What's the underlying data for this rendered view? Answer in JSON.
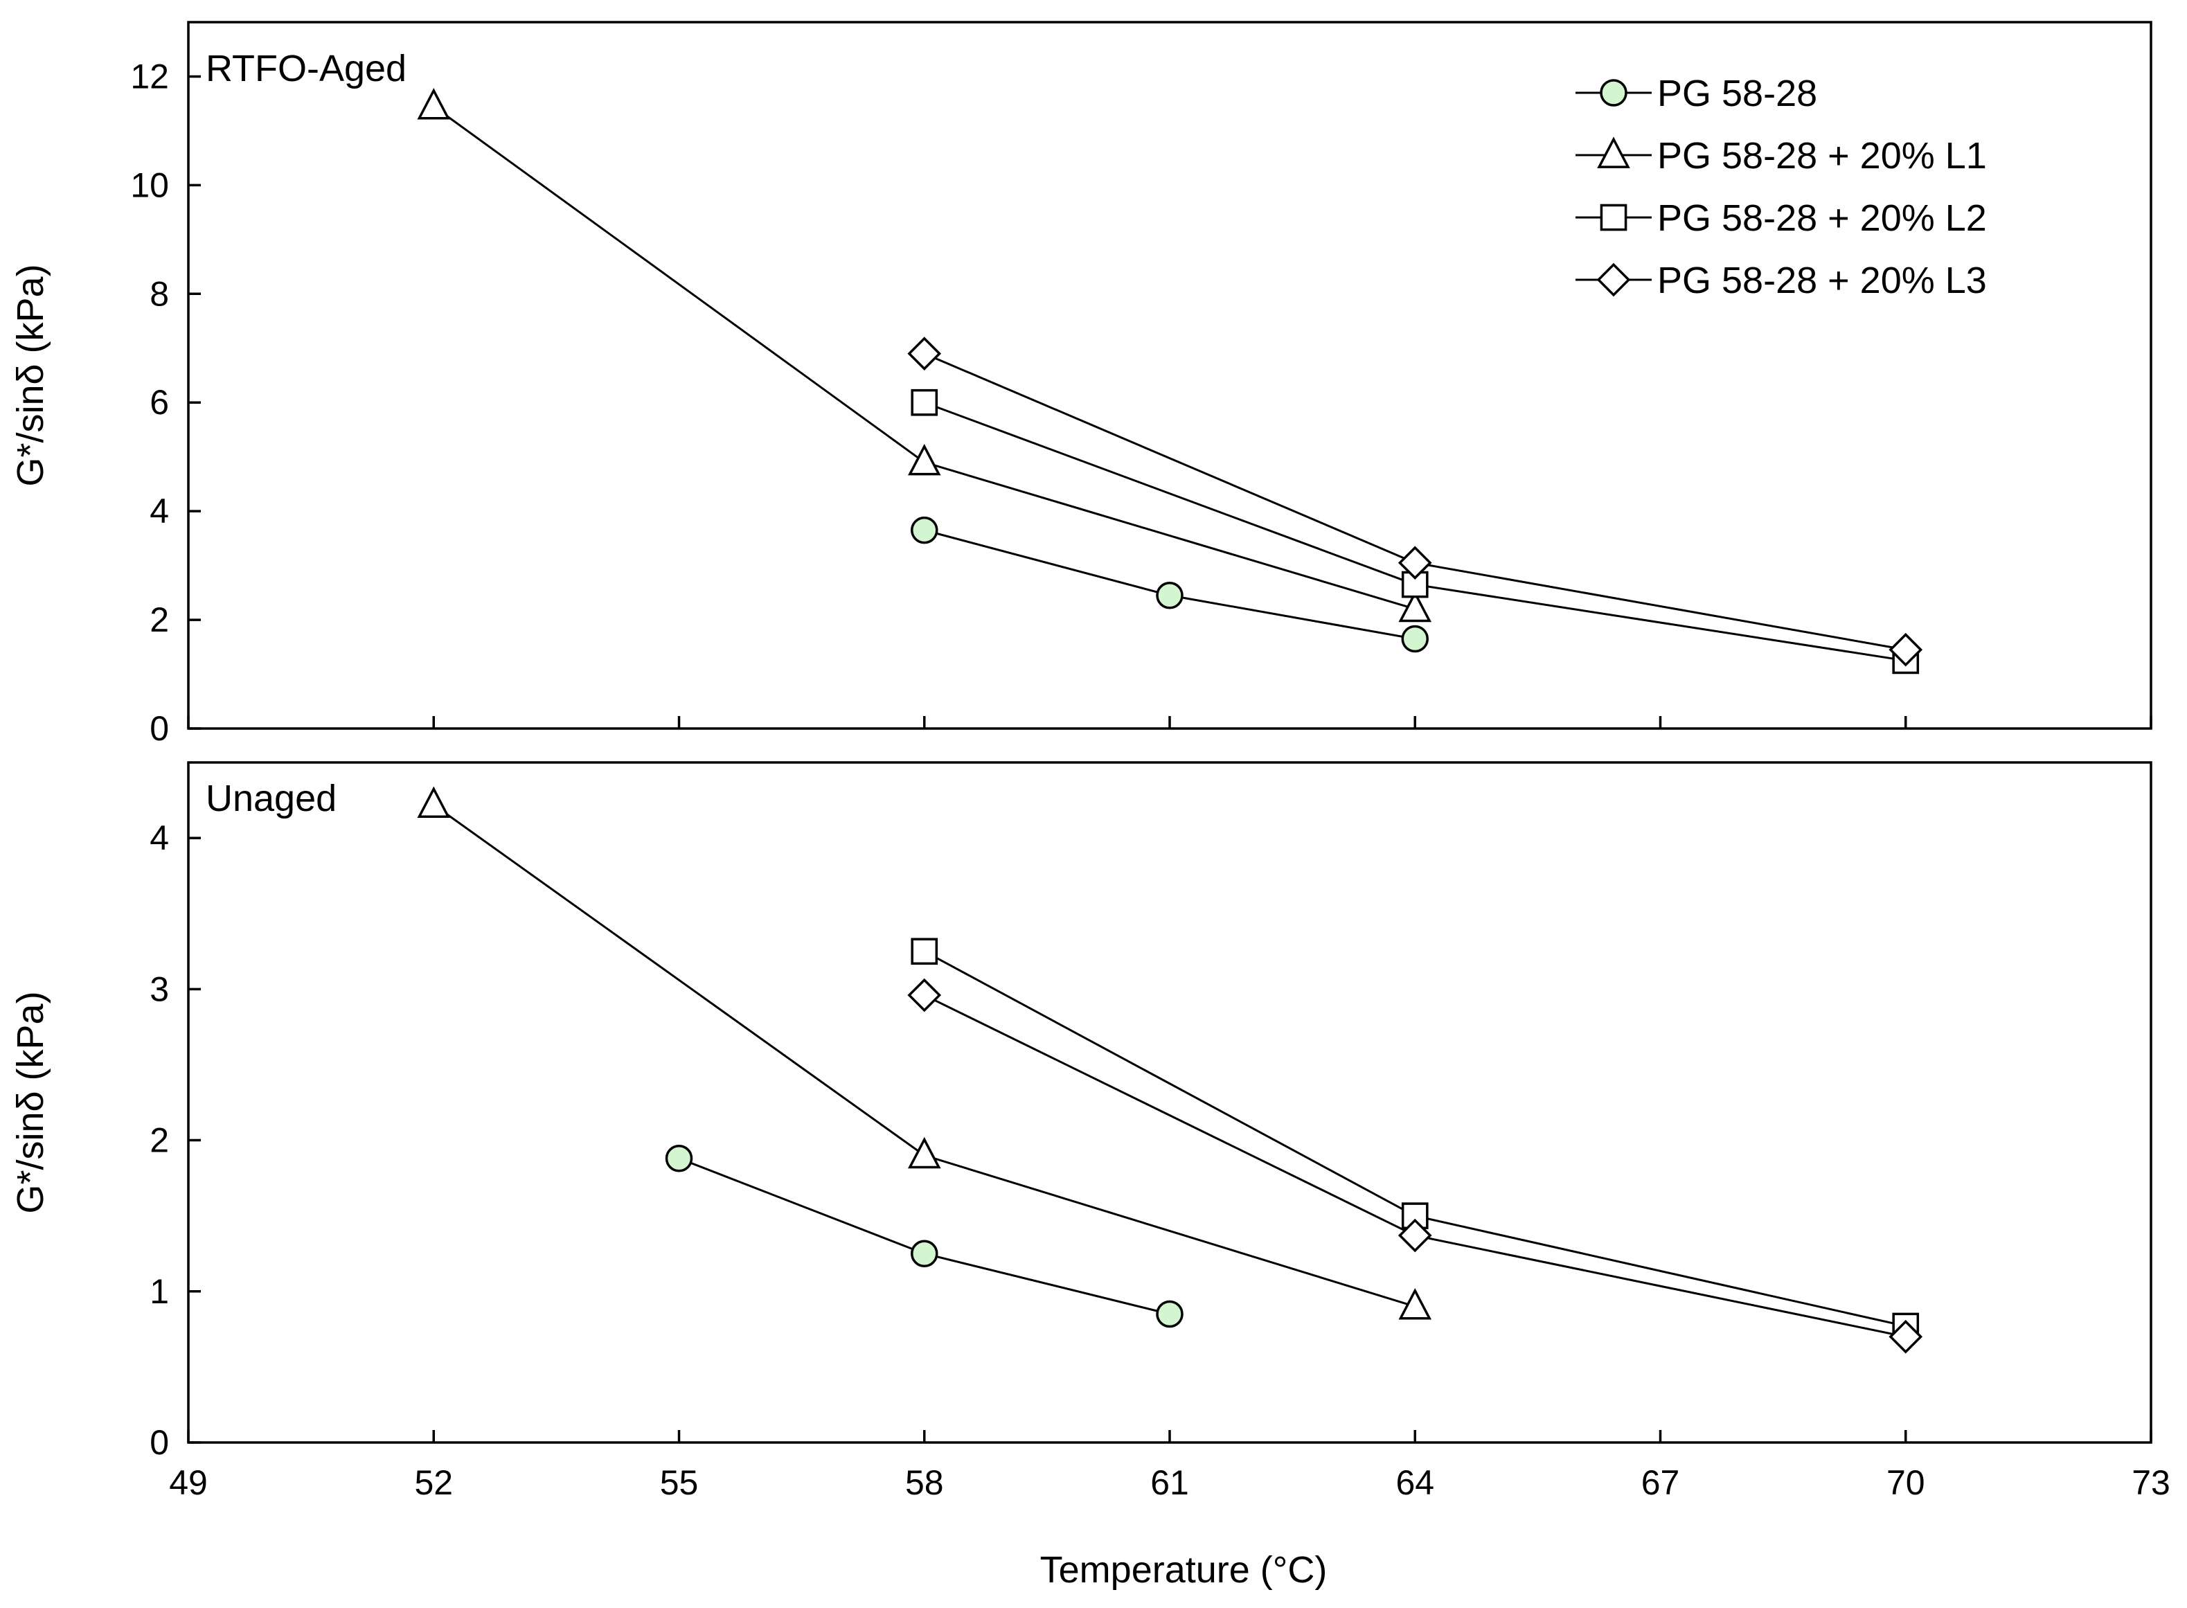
{
  "chart_data": {
    "type": "line",
    "xlabel": "Temperature (°C)",
    "xlim": [
      49,
      73
    ],
    "xticks": [
      49,
      52,
      55,
      58,
      61,
      64,
      67,
      70,
      73
    ],
    "legend": {
      "placement": "top-right of upper panel",
      "entries": [
        {
          "name": "PG 58-28",
          "marker": "circle"
        },
        {
          "name": "PG 58-28 + 20% L1",
          "marker": "triangle"
        },
        {
          "name": "PG 58-28 + 20% L2",
          "marker": "square"
        },
        {
          "name": "PG 58-28 + 20% L3",
          "marker": "diamond"
        }
      ]
    },
    "colors": {
      "circle_fill": "#d3f5cf",
      "line": "#000000",
      "open_fill": "#ffffff"
    },
    "panels": [
      {
        "label": "RTFO-Aged",
        "ylabel": "G*/sinδ (kPa)",
        "ylim": [
          0,
          13
        ],
        "yticks": [
          0,
          2,
          4,
          6,
          8,
          10,
          12
        ],
        "series": [
          {
            "name": "PG 58-28",
            "marker": "circle",
            "points": [
              [
                58,
                3.65
              ],
              [
                61,
                2.45
              ],
              [
                64,
                1.65
              ]
            ]
          },
          {
            "name": "PG 58-28 + 20% L1",
            "marker": "triangle",
            "points": [
              [
                52,
                11.45
              ],
              [
                58,
                4.9
              ],
              [
                64,
                2.2
              ]
            ]
          },
          {
            "name": "PG 58-28 + 20% L2",
            "marker": "square",
            "points": [
              [
                58,
                6.0
              ],
              [
                64,
                2.65
              ],
              [
                70,
                1.25
              ]
            ]
          },
          {
            "name": "PG 58-28 + 20% L3",
            "marker": "diamond",
            "points": [
              [
                58,
                6.9
              ],
              [
                64,
                3.05
              ],
              [
                70,
                1.45
              ]
            ]
          }
        ]
      },
      {
        "label": "Unaged",
        "ylabel": "G*/sinδ (kPa)",
        "ylim": [
          0,
          4.5
        ],
        "yticks": [
          0,
          1,
          2,
          3,
          4
        ],
        "series": [
          {
            "name": "PG 58-28",
            "marker": "circle",
            "points": [
              [
                55,
                1.88
              ],
              [
                58,
                1.25
              ],
              [
                61,
                0.85
              ]
            ]
          },
          {
            "name": "PG 58-28 + 20% L1",
            "marker": "triangle",
            "points": [
              [
                52,
                4.22
              ],
              [
                58,
                1.9
              ],
              [
                64,
                0.9
              ]
            ]
          },
          {
            "name": "PG 58-28 + 20% L2",
            "marker": "square",
            "points": [
              [
                58,
                3.25
              ],
              [
                64,
                1.5
              ],
              [
                70,
                0.77
              ]
            ]
          },
          {
            "name": "PG 58-28 + 20% L3",
            "marker": "diamond",
            "points": [
              [
                58,
                2.96
              ],
              [
                64,
                1.37
              ],
              [
                70,
                0.7
              ]
            ]
          }
        ]
      }
    ]
  }
}
